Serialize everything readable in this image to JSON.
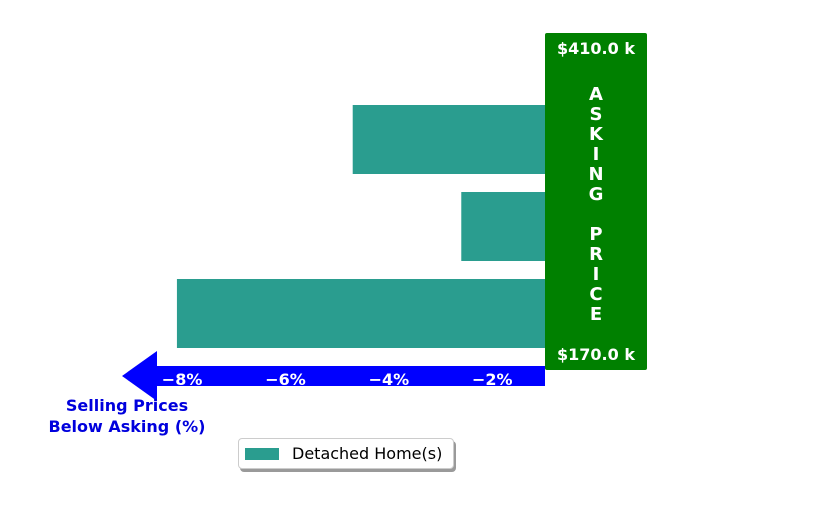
{
  "chart_data": {
    "type": "bar",
    "orientation": "horizontal",
    "series": [
      {
        "name": "Detached Home(s)",
        "values": [
          -4.7,
          -2.6,
          -8.1
        ]
      }
    ],
    "x_ticks": [
      "−8%",
      "−6%",
      "−4%",
      "−2%"
    ],
    "x_tick_values": [
      -8,
      -6,
      -4,
      -2
    ],
    "xlim": [
      -8.1,
      -1.0
    ],
    "xlabel_line1": "Selling Prices",
    "xlabel_line2": "Below Asking (%)",
    "price_high": "$410.0 k",
    "price_low": "$170.0 k",
    "asking_letters": [
      "A",
      "S",
      "K",
      "I",
      "N",
      "G",
      "",
      "P",
      "R",
      "I",
      "C",
      "E"
    ],
    "legend_position": "bottom-center",
    "grid": false
  },
  "colors": {
    "bar": "#2a9d8f",
    "asking_panel": "#008000",
    "axis_arrow": "#0000ff",
    "axis_label": "#0000dd",
    "tick_text": "#ffffff"
  }
}
